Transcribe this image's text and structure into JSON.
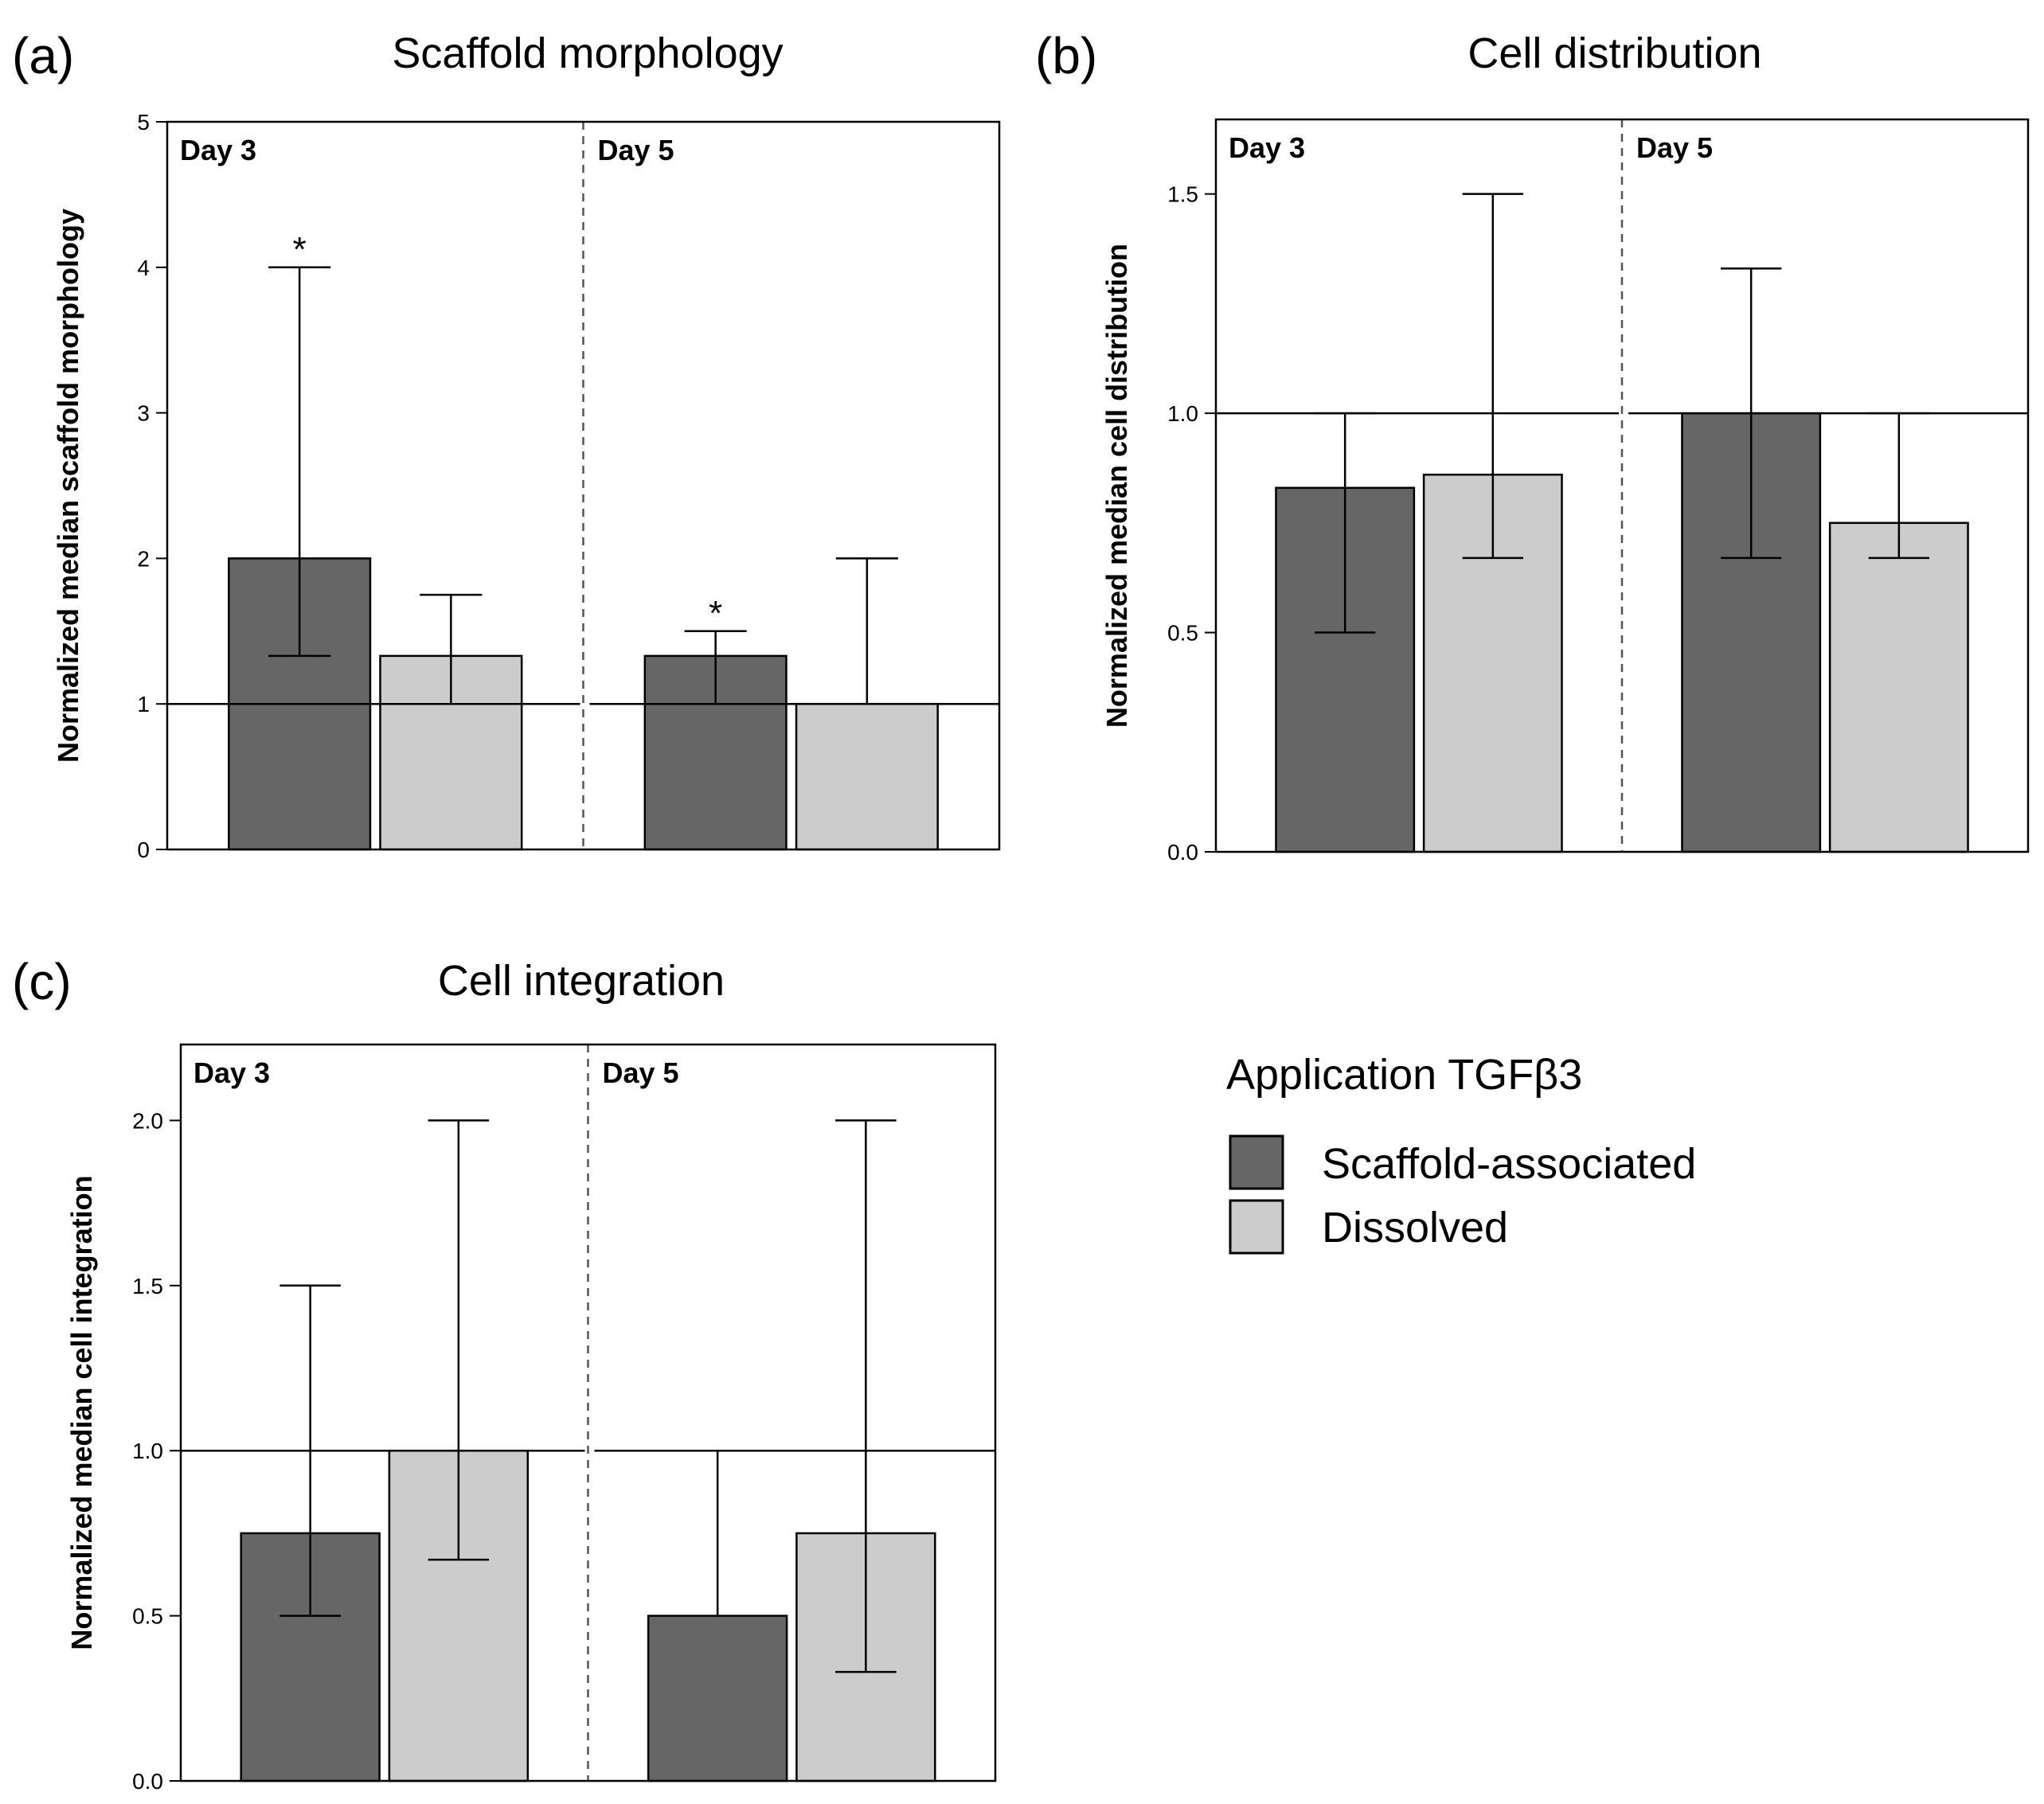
{
  "legend": {
    "title": "Application TGFβ3",
    "entries": [
      {
        "label": "Scaffold-associated",
        "color": "#666666"
      },
      {
        "label": "Dissolved",
        "color": "#cccccc"
      }
    ]
  },
  "chart_data": [
    {
      "type": "bar",
      "panel": "(a)",
      "title": "Scaffold morphology",
      "ylabel": "Normalized median scaffold morphology",
      "xlabel": "",
      "ylim": [
        0,
        5
      ],
      "yticks": [
        "0",
        "1",
        "2",
        "3",
        "4",
        "5"
      ],
      "reference_line": 1,
      "groups": [
        "Day 3",
        "Day 5"
      ],
      "series": [
        {
          "name": "Scaffold-associated",
          "color": "#666666",
          "values": [
            2,
            1.33
          ],
          "err_low": [
            1.33,
            1.0
          ],
          "err_high": [
            4.0,
            1.5
          ],
          "annotations": [
            "*",
            "*"
          ]
        },
        {
          "name": "Dissolved",
          "color": "#cccccc",
          "values": [
            1.33,
            1.0
          ],
          "err_low": [
            1.0,
            1.0
          ],
          "err_high": [
            1.75,
            2.0
          ],
          "annotations": [
            "",
            ""
          ]
        }
      ]
    },
    {
      "type": "bar",
      "panel": "(b)",
      "title": "Cell distribution",
      "ylabel": "Normalized median cell distribution",
      "xlabel": "",
      "ylim": [
        0,
        1.67
      ],
      "yticks": [
        "0.0",
        "0.5",
        "1.0",
        "1.5"
      ],
      "reference_line": 1,
      "groups": [
        "Day 3",
        "Day 5"
      ],
      "series": [
        {
          "name": "Scaffold-associated",
          "color": "#666666",
          "values": [
            0.83,
            1.0
          ],
          "err_low": [
            0.5,
            0.67
          ],
          "err_high": [
            1.0,
            1.33
          ],
          "annotations": [
            "",
            ""
          ]
        },
        {
          "name": "Dissolved",
          "color": "#cccccc",
          "values": [
            0.86,
            0.75
          ],
          "err_low": [
            0.67,
            0.67
          ],
          "err_high": [
            1.5,
            1.0
          ],
          "annotations": [
            "",
            ""
          ]
        }
      ]
    },
    {
      "type": "bar",
      "panel": "(c)",
      "title": "Cell integration",
      "ylabel": "Normalized median cell integration",
      "xlabel": "",
      "ylim": [
        0,
        2.23
      ],
      "yticks": [
        "0.0",
        "0.5",
        "1.0",
        "1.5",
        "2.0"
      ],
      "reference_line": 1,
      "groups": [
        "Day 3",
        "Day 5"
      ],
      "series": [
        {
          "name": "Scaffold-associated",
          "color": "#666666",
          "values": [
            0.75,
            0.5
          ],
          "err_low": [
            0.5,
            0.5
          ],
          "err_high": [
            1.5,
            1.0
          ],
          "annotations": [
            "",
            ""
          ]
        },
        {
          "name": "Dissolved",
          "color": "#cccccc",
          "values": [
            1.0,
            0.75
          ],
          "err_low": [
            0.67,
            0.33
          ],
          "err_high": [
            2.0,
            2.0
          ],
          "annotations": [
            "",
            ""
          ]
        }
      ]
    }
  ]
}
